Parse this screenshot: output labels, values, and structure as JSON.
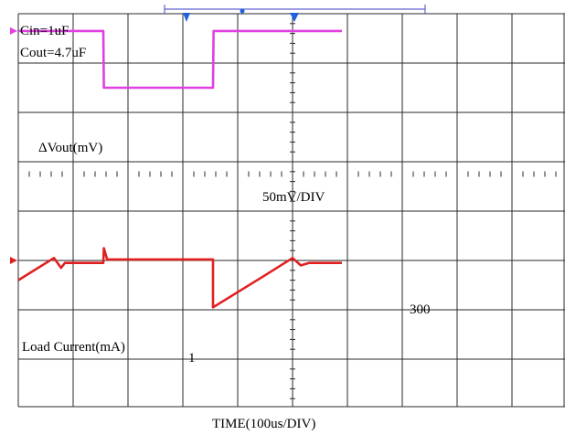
{
  "chart_data": {
    "type": "line",
    "title": "",
    "annotations": {
      "cin": "Cin=1uF",
      "cout": "Cout=4.7uF",
      "vout_label": "ΔVout(mV)",
      "vout_scale": "50mV/DIV",
      "load_label": "Load Current(mA)",
      "load_high": "300",
      "load_low": "1"
    },
    "xlabel": "TIME(100us/DIV)",
    "x_unit": "us",
    "x_per_div": 100,
    "y_divisions": 8,
    "x_divisions": 10,
    "grid": true,
    "channel_markers": [
      "2",
      "3"
    ],
    "xlim": [
      0,
      1000
    ],
    "series": [
      {
        "name": "ΔVout(mV)",
        "color": "#e02020",
        "reference_div": 5.0,
        "points_div": [
          [
            0.0,
            5.4
          ],
          [
            0.65,
            4.95
          ],
          [
            0.78,
            5.15
          ],
          [
            0.85,
            5.05
          ],
          [
            1.55,
            5.05
          ],
          [
            1.55,
            5.05
          ],
          [
            1.56,
            4.75
          ],
          [
            1.62,
            4.98
          ],
          [
            3.55,
            4.98
          ],
          [
            3.55,
            5.95
          ],
          [
            4.5,
            5.3
          ],
          [
            5.0,
            4.95
          ],
          [
            5.15,
            5.1
          ],
          [
            5.3,
            5.05
          ],
          [
            5.9,
            5.05
          ]
        ]
      },
      {
        "name": "Load Current(mA)",
        "color": "#e040e0",
        "reference_div": 0.35,
        "points_div": [
          [
            0.0,
            0.35
          ],
          [
            1.55,
            0.35
          ],
          [
            1.56,
            1.5
          ],
          [
            3.55,
            1.5
          ],
          [
            3.56,
            0.35
          ],
          [
            5.9,
            0.35
          ]
        ]
      }
    ]
  }
}
